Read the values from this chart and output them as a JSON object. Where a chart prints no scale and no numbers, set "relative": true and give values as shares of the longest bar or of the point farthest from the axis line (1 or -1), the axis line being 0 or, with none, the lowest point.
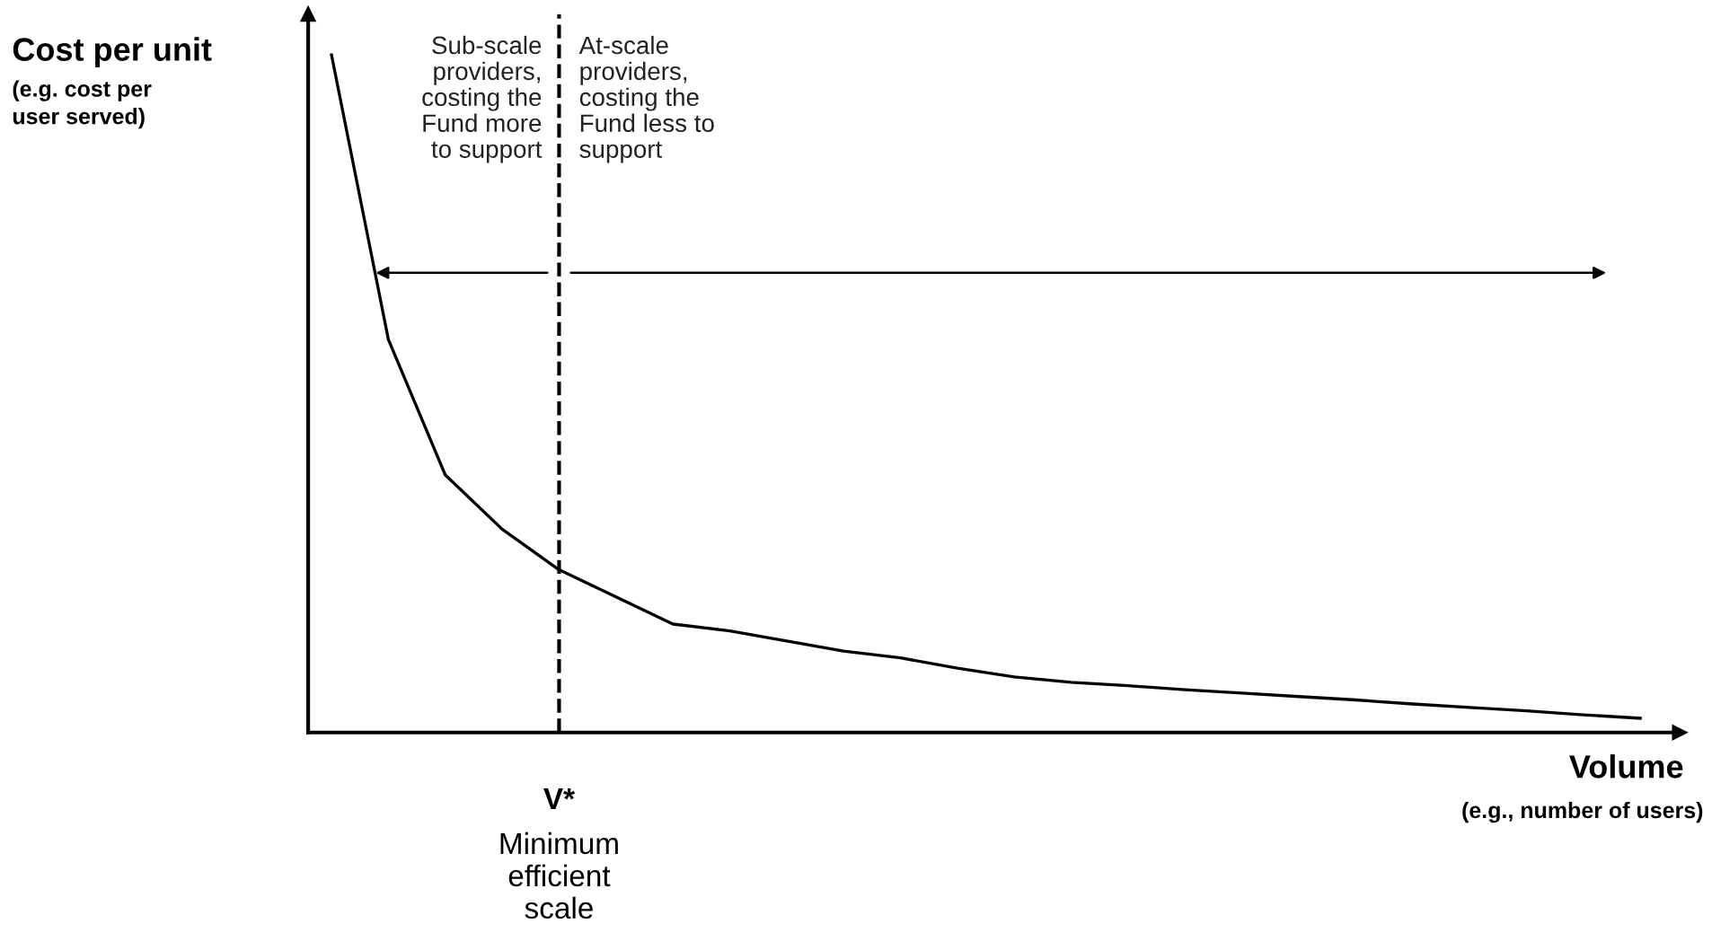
{
  "chart_data": {
    "type": "line",
    "relative": true,
    "ylabel": "Cost per unit\n(e.g. cost per user served)",
    "xlabel": "Volume\n(e.g., number of users)",
    "legend": false,
    "marker": "none",
    "line_style": "solid",
    "categories": [
      null,
      null,
      null,
      null,
      null,
      null,
      null,
      null,
      null,
      null,
      null,
      null,
      null,
      null,
      null,
      null,
      null,
      null,
      null,
      null,
      null,
      null,
      null,
      null
    ],
    "series": [
      {
        "color": "#000000",
        "values": [
          1.0,
          0.58,
          0.38,
          0.3,
          0.24,
          0.2,
          0.16,
          0.15,
          0.135,
          0.12,
          0.11,
          0.095,
          0.082,
          0.074,
          0.069,
          0.063,
          0.058,
          0.053,
          0.048,
          0.042,
          0.037,
          0.032,
          0.026,
          0.021
        ]
      }
    ],
    "annotations": [
      "Sub-scale providers, costing the Fund more to support",
      "At-scale providers, costing the Fund less to support",
      "V*",
      "Minimum efficient scale"
    ]
  }
}
